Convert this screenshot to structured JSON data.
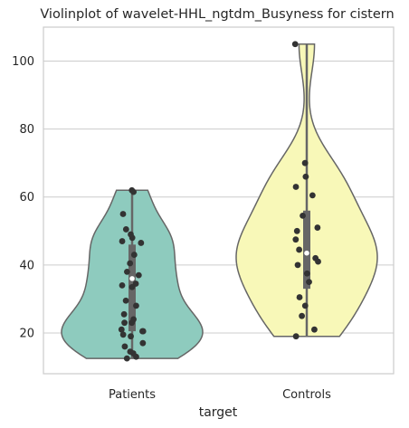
{
  "chart_data": {
    "type": "violin",
    "title": "Violinplot of wavelet-HHL_ngtdm_Busyness for cistern",
    "xlabel": "target",
    "ylabel": "",
    "categories": [
      "Patients",
      "Controls"
    ],
    "ylim": [
      8,
      110
    ],
    "yticks": [
      20,
      40,
      60,
      80,
      100
    ],
    "grid": true,
    "colors": {
      "Patients": "#8ecbbe",
      "Controls": "#f8f8b8"
    },
    "groups": [
      {
        "name": "Patients",
        "min": 12.5,
        "q1": 20.5,
        "median": 36,
        "q3": 46,
        "max": 62,
        "points": [
          62,
          61.5,
          55,
          50.5,
          49,
          48,
          47,
          46.5,
          43,
          40.5,
          38,
          37,
          34.5,
          34,
          33.5,
          29.5,
          28,
          25.5,
          24,
          23,
          23,
          21,
          20.5,
          20.5,
          19.5,
          19,
          17,
          16,
          14.5,
          14,
          13,
          12.5
        ]
      },
      {
        "name": "Controls",
        "min": 19,
        "q1": 33,
        "median": 43.5,
        "q3": 56,
        "max": 105,
        "points": [
          105,
          70,
          66,
          63,
          60.5,
          54.5,
          51,
          50,
          47.5,
          44.5,
          42,
          41,
          40,
          37.5,
          35,
          30.5,
          28,
          25,
          21,
          19
        ]
      }
    ]
  }
}
